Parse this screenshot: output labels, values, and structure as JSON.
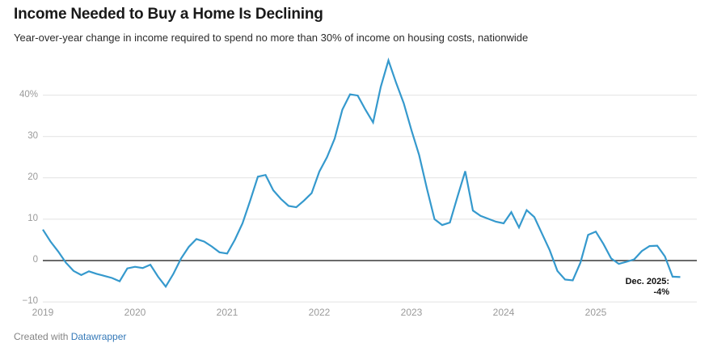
{
  "header": {
    "title": "Income Needed to Buy a Home Is Declining",
    "subtitle": "Year-over-year change in income required to spend no more than 30% of income on housing costs, nationwide"
  },
  "annotation": {
    "line1": "Dec. 2025:",
    "line2": "-4%"
  },
  "footer": {
    "created_with": "Created with ",
    "brand": "Datawrapper"
  },
  "colors": {
    "line": "#3599cd",
    "grid": "#e2e2e2",
    "zero_line": "#555555",
    "axis_text": "#9a9a9a",
    "title_text": "#191919",
    "annotation_text": "#111111",
    "link": "#3579b8"
  },
  "chart_data": {
    "type": "line",
    "title": "Income Needed to Buy a Home Is Declining",
    "subtitle": "Year-over-year change in income required to spend no more than 30% of income on housing costs, nationwide",
    "unit": "%",
    "x_start": "2019-01",
    "x_end": "2025-12",
    "x_freq": "monthly",
    "ylim": [
      -10,
      50
    ],
    "grid": "horizontal",
    "legend": "none",
    "y_axis": {
      "ticks": [
        {
          "label": "40%",
          "value": 40
        },
        {
          "label": "30",
          "value": 30
        },
        {
          "label": "20",
          "value": 20
        },
        {
          "label": "10",
          "value": 10
        },
        {
          "label": "0",
          "value": 0
        },
        {
          "label": "−10",
          "value": -10
        }
      ]
    },
    "x_axis": {
      "tick_labels": [
        "2019",
        "2020",
        "2021",
        "2022",
        "2023",
        "2024",
        "2025"
      ]
    },
    "series": [
      {
        "name": "YoY change in income required (%)",
        "values": [
          7.5,
          4.6,
          2.2,
          -0.5,
          -2.5,
          -3.5,
          -2.6,
          -3.2,
          -3.7,
          -4.2,
          -5.0,
          -1.9,
          -1.5,
          -1.8,
          -1.0,
          -3.9,
          -6.3,
          -3.2,
          0.5,
          3.3,
          5.2,
          4.6,
          3.4,
          2.0,
          1.7,
          5.0,
          9.0,
          14.5,
          20.3,
          20.7,
          17.0,
          14.9,
          13.2,
          12.9,
          14.5,
          16.3,
          21.5,
          25.0,
          29.5,
          36.5,
          40.2,
          39.9,
          36.5,
          33.4,
          42.0,
          48.4,
          43.0,
          38.0,
          31.5,
          25.5,
          17.5,
          10.0,
          8.6,
          9.2,
          15.5,
          21.6,
          12.1,
          10.8,
          10.1,
          9.4,
          9.0,
          11.7,
          8.0,
          12.2,
          10.5,
          6.5,
          2.5,
          -2.5,
          -4.6,
          -4.8,
          -0.5,
          6.2,
          7.0,
          4.0,
          0.5,
          -0.8,
          -0.3,
          0.3,
          2.3,
          3.5,
          3.6,
          1.0,
          -3.9,
          -4.0
        ]
      }
    ],
    "annotations": [
      {
        "x": "2025-12",
        "value": -4,
        "text": "Dec. 2025: -4%"
      }
    ]
  }
}
